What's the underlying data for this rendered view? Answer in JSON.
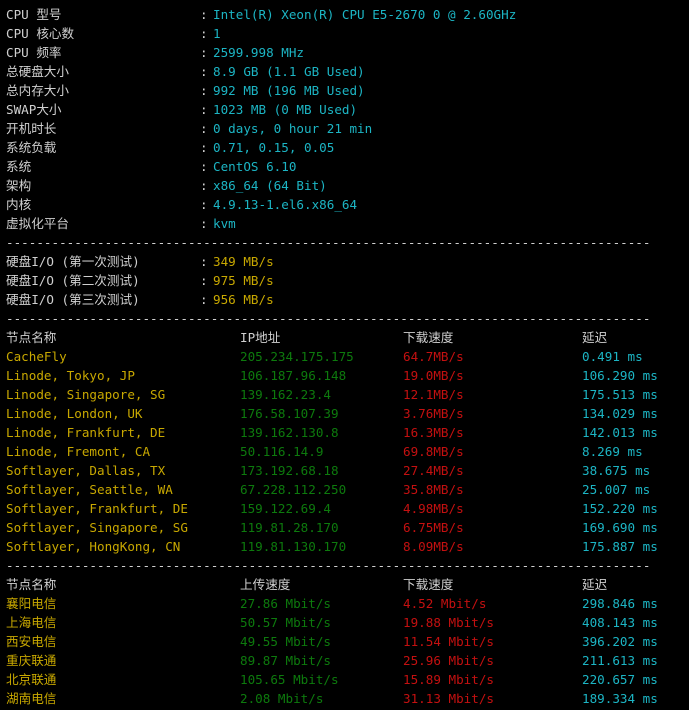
{
  "colors": {
    "label": "#d0d0d0",
    "value": "#1cb5c4",
    "node": "#c8a800",
    "ip": "#0d7a0d",
    "speed": "#c41010",
    "latency": "#1cb5c4"
  },
  "sysinfo": [
    {
      "label": "CPU 型号",
      "value": "Intel(R) Xeon(R) CPU E5-2670 0 @ 2.60GHz"
    },
    {
      "label": "CPU 核心数",
      "value": "1"
    },
    {
      "label": "CPU 频率",
      "value": "2599.998 MHz"
    },
    {
      "label": "总硬盘大小",
      "value": "8.9 GB (1.1 GB Used)"
    },
    {
      "label": "总内存大小",
      "value": "992 MB (196 MB Used)"
    },
    {
      "label": "SWAP大小",
      "value": "1023 MB (0 MB Used)"
    },
    {
      "label": "开机时长",
      "value": "0 days, 0 hour 21 min"
    },
    {
      "label": "系统负载",
      "value": "0.71, 0.15, 0.05"
    },
    {
      "label": "系统",
      "value": "CentOS 6.10"
    },
    {
      "label": "架构",
      "value": "x86_64 (64 Bit)"
    },
    {
      "label": "内核",
      "value": "4.9.13-1.el6.x86_64"
    },
    {
      "label": "虚拟化平台",
      "value": "kvm"
    }
  ],
  "colon": ":",
  "separator": "-------------------------------------------------------------------------------------",
  "disk_io": [
    {
      "label": "硬盘I/O (第一次测试)",
      "value": "349 MB/s"
    },
    {
      "label": "硬盘I/O (第二次测试)",
      "value": "975 MB/s"
    },
    {
      "label": "硬盘I/O (第三次测试)",
      "value": "956 MB/s"
    }
  ],
  "intl": {
    "headers": [
      "节点名称",
      "IP地址",
      "下载速度",
      "延迟"
    ],
    "rows": [
      [
        "CacheFly",
        "205.234.175.175",
        "64.7MB/s",
        "0.491 ms"
      ],
      [
        "Linode, Tokyo, JP",
        "106.187.96.148",
        "19.0MB/s",
        "106.290 ms"
      ],
      [
        "Linode, Singapore, SG",
        "139.162.23.4",
        "12.1MB/s",
        "175.513 ms"
      ],
      [
        "Linode, London, UK",
        "176.58.107.39",
        "3.76MB/s",
        "134.029 ms"
      ],
      [
        "Linode, Frankfurt, DE",
        "139.162.130.8",
        "16.3MB/s",
        "142.013 ms"
      ],
      [
        "Linode, Fremont, CA",
        "50.116.14.9",
        "69.8MB/s",
        "8.269 ms"
      ],
      [
        "Softlayer, Dallas, TX",
        "173.192.68.18",
        "27.4MB/s",
        "38.675 ms"
      ],
      [
        "Softlayer, Seattle, WA",
        "67.228.112.250",
        "35.8MB/s",
        "25.007 ms"
      ],
      [
        "Softlayer, Frankfurt, DE",
        "159.122.69.4",
        "4.98MB/s",
        "152.220 ms"
      ],
      [
        "Softlayer, Singapore, SG",
        "119.81.28.170",
        "6.75MB/s",
        "169.690 ms"
      ],
      [
        "Softlayer, HongKong, CN",
        "119.81.130.170",
        "8.09MB/s",
        "175.887 ms"
      ]
    ]
  },
  "cn": {
    "headers": [
      "节点名称",
      "上传速度",
      "下载速度",
      "延迟"
    ],
    "rows": [
      [
        "襄阳电信",
        "27.86 Mbit/s",
        "4.52 Mbit/s",
        "298.846 ms"
      ],
      [
        "上海电信",
        "50.57 Mbit/s",
        "19.88 Mbit/s",
        "408.143 ms"
      ],
      [
        "西安电信",
        "49.55 Mbit/s",
        "11.54 Mbit/s",
        "396.202 ms"
      ],
      [
        "重庆联通",
        "89.87 Mbit/s",
        "25.96 Mbit/s",
        "211.613 ms"
      ],
      [
        "北京联通",
        "105.65 Mbit/s",
        "15.89 Mbit/s",
        "220.657 ms"
      ],
      [
        "湖南电信",
        "2.08 Mbit/s",
        "31.13 Mbit/s",
        "189.334 ms"
      ]
    ]
  }
}
